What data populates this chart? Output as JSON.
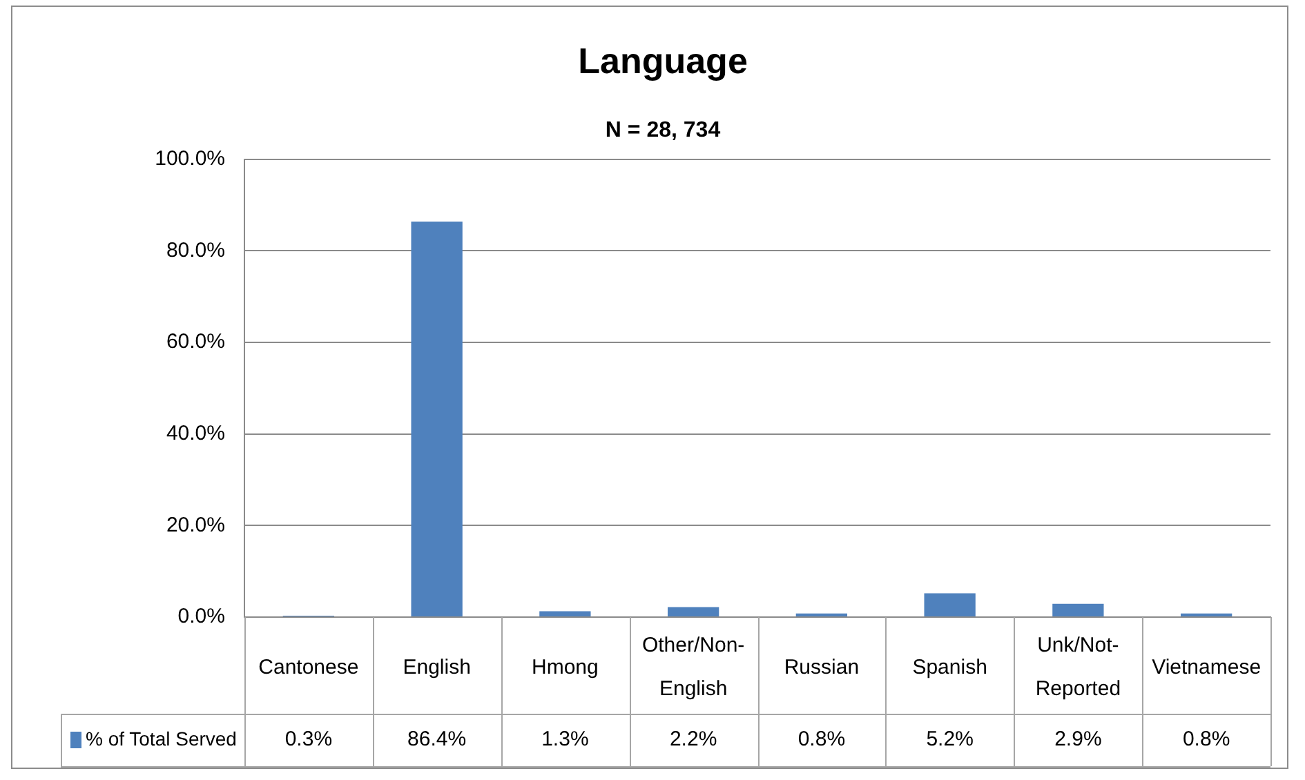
{
  "chart_data": {
    "type": "bar",
    "title": "Language",
    "subtitle": "N = 28, 734",
    "categories": [
      "Cantonese",
      "English",
      "Hmong",
      "Other/Non-English",
      "Russian",
      "Spanish",
      "Unk/Not-Reported",
      "Vietnamese"
    ],
    "series": [
      {
        "name": "% of Total Served",
        "color": "#4f81bd",
        "values": [
          0.3,
          86.4,
          1.3,
          2.2,
          0.8,
          5.2,
          2.9,
          0.8
        ],
        "value_labels": [
          "0.3%",
          "86.4%",
          "1.3%",
          "2.2%",
          "0.8%",
          "5.2%",
          "2.9%",
          "0.8%"
        ]
      }
    ],
    "ylim": [
      0,
      100
    ],
    "yticks": [
      {
        "value": 0,
        "label": "0.0%"
      },
      {
        "value": 20,
        "label": "20.0%"
      },
      {
        "value": 40,
        "label": "40.0%"
      },
      {
        "value": 60,
        "label": "60.0%"
      },
      {
        "value": 80,
        "label": "80.0%"
      },
      {
        "value": 100,
        "label": "100.0%"
      }
    ],
    "grid": "y",
    "legend": "bottom left"
  }
}
